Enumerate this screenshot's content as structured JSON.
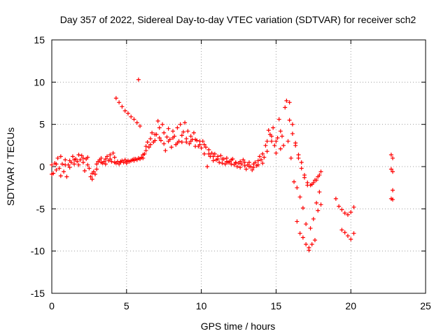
{
  "chart_data": {
    "type": "scatter",
    "title": "Day 357 of 2022, Sidereal Day-to-day VTEC variation (SDTVAR) for receiver sch2",
    "xlabel": "GPS time / hours",
    "ylabel": "SDTVAR / TECUs",
    "xlim": [
      0,
      25
    ],
    "ylim": [
      -15,
      15
    ],
    "xticks": [
      "0",
      "5",
      "10",
      "15",
      "20",
      "25"
    ],
    "yticks": [
      "15",
      "10",
      "5",
      "0",
      "-5",
      "-10",
      "-15"
    ],
    "grid": true,
    "marker": "+",
    "color": "#ff0000",
    "series": [
      {
        "name": "sch2 SDTVAR",
        "points": [
          [
            0.0,
            0.2
          ],
          [
            0.1,
            -0.8
          ],
          [
            0.2,
            0.4
          ],
          [
            0.3,
            -0.4
          ],
          [
            0.4,
            1.0
          ],
          [
            0.5,
            -0.2
          ],
          [
            0.6,
            1.2
          ],
          [
            0.7,
            0.3
          ],
          [
            0.8,
            -0.6
          ],
          [
            0.9,
            0.8
          ],
          [
            1.0,
            -1.2
          ],
          [
            1.1,
            0.2
          ],
          [
            1.2,
            0.7
          ],
          [
            1.3,
            0.5
          ],
          [
            1.4,
            1.2
          ],
          [
            1.5,
            0.3
          ],
          [
            1.6,
            0.9
          ],
          [
            1.7,
            0.6
          ],
          [
            1.8,
            1.4
          ],
          [
            1.9,
            0.8
          ],
          [
            2.0,
            1.3
          ],
          [
            2.1,
            0.5
          ],
          [
            2.2,
            -0.5
          ],
          [
            2.3,
            0.9
          ],
          [
            2.4,
            1.1
          ],
          [
            2.5,
            -0.2
          ],
          [
            2.6,
            -1.2
          ],
          [
            2.7,
            -1.5
          ],
          [
            2.8,
            -0.6
          ],
          [
            2.9,
            -0.9
          ],
          [
            3.0,
            0.3
          ],
          [
            3.1,
            0.6
          ],
          [
            3.2,
            0.8
          ],
          [
            3.3,
            1.0
          ],
          [
            3.4,
            0.4
          ],
          [
            3.5,
            0.6
          ],
          [
            3.6,
            0.9
          ],
          [
            3.7,
            1.2
          ],
          [
            3.8,
            0.7
          ],
          [
            3.9,
            1.4
          ],
          [
            4.0,
            0.6
          ],
          [
            4.1,
            1.6
          ],
          [
            4.2,
            0.5
          ],
          [
            4.3,
            0.4
          ],
          [
            4.4,
            0.6
          ],
          [
            4.5,
            0.3
          ],
          [
            4.6,
            0.5
          ],
          [
            4.7,
            0.7
          ],
          [
            4.8,
            0.5
          ],
          [
            4.9,
            0.8
          ],
          [
            5.0,
            0.6
          ],
          [
            5.1,
            0.7
          ],
          [
            5.2,
            0.6
          ],
          [
            5.3,
            0.7
          ],
          [
            5.4,
            0.8
          ],
          [
            5.5,
            0.7
          ],
          [
            5.6,
            0.9
          ],
          [
            5.7,
            0.8
          ],
          [
            5.8,
            1.0
          ],
          [
            5.9,
            0.9
          ],
          [
            6.0,
            1.1
          ],
          [
            6.1,
            1.0
          ],
          [
            6.2,
            1.5
          ],
          [
            6.3,
            2.4
          ],
          [
            6.4,
            2.9
          ],
          [
            6.5,
            2.3
          ],
          [
            6.6,
            3.3
          ],
          [
            6.7,
            4.0
          ],
          [
            6.8,
            2.9
          ],
          [
            6.9,
            3.8
          ],
          [
            7.0,
            3.8
          ],
          [
            7.1,
            5.4
          ],
          [
            7.2,
            4.6
          ],
          [
            7.3,
            3.1
          ],
          [
            7.4,
            5.0
          ],
          [
            7.5,
            4.0
          ],
          [
            7.6,
            1.9
          ],
          [
            7.7,
            3.5
          ],
          [
            7.8,
            4.5
          ],
          [
            7.9,
            3.2
          ],
          [
            8.0,
            2.3
          ],
          [
            8.1,
            4.2
          ],
          [
            8.2,
            3.6
          ],
          [
            8.3,
            2.6
          ],
          [
            8.4,
            4.6
          ],
          [
            8.5,
            3.0
          ],
          [
            8.6,
            5.0
          ],
          [
            8.7,
            2.9
          ],
          [
            8.8,
            4.1
          ],
          [
            8.9,
            5.2
          ],
          [
            9.0,
            3.3
          ],
          [
            9.1,
            4.2
          ],
          [
            9.2,
            2.7
          ],
          [
            9.3,
            3.6
          ],
          [
            9.4,
            3.2
          ],
          [
            9.5,
            4.0
          ],
          [
            9.6,
            2.4
          ],
          [
            9.7,
            3.1
          ],
          [
            9.8,
            2.4
          ],
          [
            9.9,
            3.0
          ],
          [
            10.0,
            2.2
          ],
          [
            10.1,
            3.0
          ],
          [
            10.2,
            1.5
          ],
          [
            10.3,
            2.3
          ],
          [
            10.4,
            0.0
          ],
          [
            10.5,
            2.0
          ],
          [
            10.6,
            1.2
          ],
          [
            10.7,
            1.6
          ],
          [
            10.8,
            0.7
          ],
          [
            10.9,
            1.5
          ],
          [
            11.0,
            0.8
          ],
          [
            11.1,
            1.2
          ],
          [
            11.2,
            0.5
          ],
          [
            11.3,
            1.3
          ],
          [
            11.4,
            0.4
          ],
          [
            11.5,
            0.9
          ],
          [
            11.6,
            0.3
          ],
          [
            11.7,
            1.0
          ],
          [
            11.8,
            0.5
          ],
          [
            11.9,
            0.6
          ],
          [
            12.0,
            0.3
          ],
          [
            12.1,
            0.9
          ],
          [
            12.2,
            0.2
          ],
          [
            12.3,
            0.5
          ],
          [
            12.4,
            0.0
          ],
          [
            12.5,
            0.4
          ],
          [
            12.6,
            -0.1
          ],
          [
            12.7,
            0.3
          ],
          [
            12.8,
            0.8
          ],
          [
            12.9,
            0.1
          ],
          [
            13.0,
            -0.3
          ],
          [
            13.1,
            0.2
          ],
          [
            13.2,
            0.5
          ],
          [
            13.3,
            0.0
          ],
          [
            13.4,
            -0.4
          ],
          [
            13.5,
            0.3
          ],
          [
            13.6,
            0.5
          ],
          [
            13.7,
            0.1
          ],
          [
            13.8,
            0.7
          ],
          [
            13.9,
            1.2
          ],
          [
            14.0,
            0.8
          ],
          [
            14.1,
            1.5
          ],
          [
            14.2,
            1.1
          ],
          [
            14.3,
            2.5
          ],
          [
            14.4,
            3.0
          ],
          [
            14.5,
            4.3
          ],
          [
            14.6,
            3.8
          ],
          [
            14.7,
            3.0
          ],
          [
            14.8,
            4.6
          ],
          [
            14.9,
            2.5
          ],
          [
            15.0,
            1.6
          ],
          [
            15.1,
            3.4
          ],
          [
            15.2,
            5.6
          ],
          [
            15.3,
            2.1
          ],
          [
            15.4,
            3.6
          ],
          [
            15.5,
            2.5
          ],
          [
            15.6,
            7.0
          ],
          [
            15.7,
            7.8
          ],
          [
            15.8,
            3.0
          ],
          [
            15.9,
            5.5
          ],
          [
            16.0,
            1.0
          ],
          [
            16.1,
            3.9
          ],
          [
            16.2,
            -1.8
          ],
          [
            16.3,
            2.5
          ],
          [
            16.4,
            -2.5
          ],
          [
            16.5,
            1.4
          ],
          [
            16.6,
            -3.6
          ],
          [
            16.7,
            0.5
          ],
          [
            16.8,
            -4.9
          ],
          [
            16.9,
            -1.0
          ],
          [
            17.0,
            -6.8
          ],
          [
            17.1,
            -2.2
          ],
          [
            17.2,
            -9.6
          ],
          [
            17.3,
            -7.3
          ],
          [
            17.4,
            -2.1
          ],
          [
            17.5,
            -6.2
          ],
          [
            17.6,
            -1.6
          ],
          [
            17.7,
            -4.3
          ],
          [
            17.8,
            -1.2
          ],
          [
            17.9,
            -3.0
          ],
          [
            18.0,
            -0.6
          ],
          [
            19.0,
            -3.8
          ],
          [
            19.2,
            -4.7
          ],
          [
            19.4,
            -5.1
          ],
          [
            19.6,
            -5.5
          ],
          [
            19.8,
            -5.7
          ],
          [
            20.0,
            -5.4
          ],
          [
            20.2,
            -4.8
          ],
          [
            19.4,
            -7.5
          ],
          [
            19.6,
            -7.8
          ],
          [
            19.8,
            -8.2
          ],
          [
            20.0,
            -8.6
          ],
          [
            20.2,
            -7.9
          ],
          [
            22.7,
            1.4
          ],
          [
            22.8,
            1.0
          ],
          [
            22.7,
            -0.3
          ],
          [
            22.8,
            -0.6
          ],
          [
            22.8,
            -2.8
          ],
          [
            22.7,
            -3.8
          ],
          [
            22.8,
            -3.9
          ],
          [
            4.3,
            8.1
          ],
          [
            4.5,
            7.6
          ],
          [
            4.7,
            7.1
          ],
          [
            4.9,
            6.6
          ],
          [
            5.1,
            6.3
          ],
          [
            5.3,
            5.9
          ],
          [
            5.5,
            5.6
          ],
          [
            5.7,
            5.2
          ],
          [
            5.9,
            4.8
          ],
          [
            5.8,
            10.3
          ],
          [
            15.9,
            7.6
          ],
          [
            16.1,
            5.0
          ],
          [
            16.3,
            2.8
          ],
          [
            16.5,
            1.0
          ],
          [
            16.7,
            -0.2
          ],
          [
            16.9,
            -1.3
          ],
          [
            17.1,
            -1.9
          ],
          [
            17.3,
            -2.2
          ],
          [
            17.5,
            -1.9
          ],
          [
            17.7,
            -1.6
          ],
          [
            17.9,
            -1.0
          ],
          [
            16.8,
            -8.4
          ],
          [
            17.0,
            -9.2
          ],
          [
            17.2,
            -9.9
          ],
          [
            17.4,
            -9.2
          ],
          [
            17.6,
            -8.7
          ],
          [
            17.8,
            -5.2
          ],
          [
            18.0,
            -4.5
          ],
          [
            16.6,
            -7.9
          ],
          [
            16.4,
            -6.5
          ],
          [
            0.0,
            -0.9
          ],
          [
            0.3,
            0.3
          ],
          [
            0.6,
            -1.1
          ],
          [
            0.9,
            0.2
          ],
          [
            1.2,
            -0.1
          ],
          [
            1.5,
            0.8
          ],
          [
            1.8,
            0.2
          ],
          [
            2.1,
            1.0
          ],
          [
            2.4,
            0.2
          ],
          [
            2.7,
            -0.8
          ],
          [
            3.0,
            -0.3
          ],
          [
            3.3,
            0.5
          ],
          [
            3.6,
            0.3
          ],
          [
            3.9,
            0.9
          ],
          [
            4.2,
            1.1
          ],
          [
            4.6,
            0.6
          ],
          [
            5.0,
            0.4
          ],
          [
            5.5,
            0.9
          ],
          [
            6.1,
            1.4
          ],
          [
            6.3,
            1.9
          ],
          [
            6.6,
            2.6
          ],
          [
            6.9,
            3.1
          ],
          [
            7.2,
            3.4
          ],
          [
            7.5,
            2.7
          ],
          [
            7.8,
            3.0
          ],
          [
            8.1,
            3.4
          ],
          [
            8.4,
            2.8
          ],
          [
            8.7,
            3.7
          ],
          [
            9.0,
            2.9
          ],
          [
            9.3,
            3.0
          ],
          [
            9.6,
            3.2
          ],
          [
            9.9,
            2.6
          ],
          [
            10.2,
            2.6
          ],
          [
            10.5,
            1.5
          ],
          [
            10.8,
            1.2
          ],
          [
            11.1,
            0.9
          ],
          [
            11.4,
            0.9
          ],
          [
            11.7,
            0.6
          ],
          [
            12.0,
            0.8
          ],
          [
            12.3,
            0.4
          ],
          [
            12.6,
            0.6
          ],
          [
            12.9,
            0.5
          ],
          [
            13.2,
            0.0
          ],
          [
            13.5,
            -0.1
          ],
          [
            13.8,
            0.2
          ],
          [
            14.1,
            0.4
          ],
          [
            14.4,
            1.8
          ],
          [
            14.7,
            3.6
          ],
          [
            15.0,
            3.0
          ],
          [
            15.3,
            4.2
          ]
        ]
      }
    ]
  }
}
